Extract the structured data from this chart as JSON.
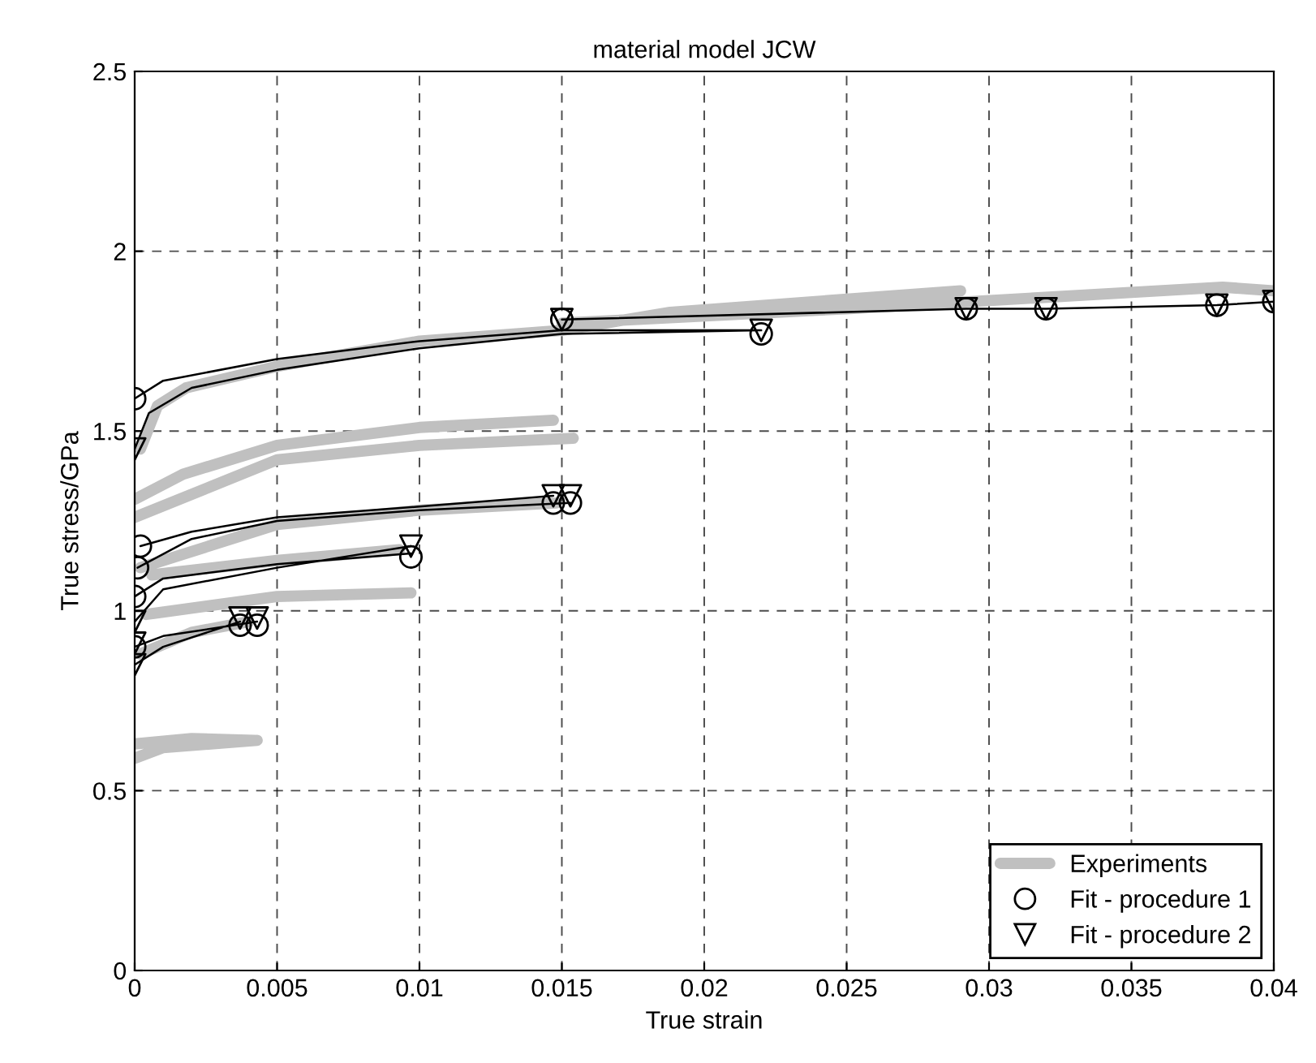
{
  "chart_data": {
    "type": "line",
    "title": "material model JCW",
    "xlabel": "True strain",
    "ylabel": "True stress/GPa",
    "xlim": [
      0,
      0.04
    ],
    "xticks": [
      0,
      0.005,
      0.01,
      0.015,
      0.02,
      0.025,
      0.03,
      0.035,
      0.04
    ],
    "ylim": [
      0,
      2.5
    ],
    "yticks": [
      0,
      0.5,
      1,
      1.5,
      2,
      2.5
    ],
    "grid": true,
    "legend": "bottom right",
    "series": [
      {
        "name": "Experiments",
        "color": "#c0c0c0",
        "marker": "none",
        "x": [
          0.0002,
          0.0008,
          0.0018,
          0.005,
          0.01,
          0.015,
          0.0188,
          0.029,
          null,
          0.015,
          0.025,
          0.0382,
          0.04,
          null,
          0,
          0.0017,
          0.005,
          0.01,
          0.0147,
          null,
          0,
          0.005,
          0.01,
          0.0154,
          null,
          0.0002,
          0.005,
          0.01,
          0.0148,
          null,
          0.0006,
          0.005,
          0.0093,
          null,
          0.0004,
          0.005,
          0.0097,
          null,
          0.0002,
          0.002,
          0.004,
          null,
          0,
          0.001,
          0.0043,
          null,
          0,
          0.002,
          0.0042
        ],
        "values": [
          1.45,
          1.57,
          1.62,
          1.68,
          1.75,
          1.78,
          1.83,
          1.89,
          null,
          1.8,
          1.84,
          1.9,
          1.89,
          null,
          1.31,
          1.38,
          1.46,
          1.51,
          1.53,
          null,
          1.26,
          1.42,
          1.46,
          1.48,
          null,
          1.12,
          1.24,
          1.28,
          1.3,
          null,
          1.1,
          1.14,
          1.17,
          null,
          0.99,
          1.04,
          1.05,
          null,
          0.88,
          0.94,
          0.97,
          null,
          0.59,
          0.62,
          0.64,
          null,
          0.63,
          0.645,
          0.64
        ]
      },
      {
        "color": "#000000",
        "marker": "none",
        "x": [
          0,
          0.001,
          0.005,
          0.01,
          0.015,
          0.022,
          null,
          0,
          0.0005,
          0.002,
          0.005,
          0.01,
          0.015,
          0.022,
          null,
          0.015,
          0.0292,
          0.032,
          0.038,
          0.04,
          null,
          0.0001,
          0.002,
          0.005,
          0.01,
          0.0153,
          null,
          0.0002,
          0.002,
          0.005,
          0.01,
          0.0147,
          null,
          0,
          0.001,
          0.005,
          0.0097,
          null,
          0,
          0.001,
          0.005,
          0.0097,
          null,
          0,
          0.001,
          0.0043,
          null,
          0,
          0.001,
          0.0037
        ],
        "values": [
          1.59,
          1.64,
          1.7,
          1.75,
          1.78,
          1.78,
          null,
          1.45,
          1.55,
          1.62,
          1.67,
          1.73,
          1.77,
          1.78,
          null,
          1.81,
          1.84,
          1.84,
          1.85,
          1.86,
          null,
          1.12,
          1.2,
          1.25,
          1.28,
          1.3,
          null,
          1.18,
          1.22,
          1.26,
          1.29,
          1.32,
          null,
          1.04,
          1.09,
          1.13,
          1.16,
          null,
          0.97,
          1.06,
          1.12,
          1.18,
          null,
          0.9,
          0.93,
          0.97,
          null,
          0.85,
          0.9,
          0.97
        ]
      },
      {
        "type": "scatter",
        "name": "Fit - procedure 1",
        "color": "#000000",
        "marker": "circle",
        "x": [
          0,
          0.022,
          0.015,
          0.0292,
          0.032,
          0.038,
          0.04,
          0.0001,
          0.0002,
          0.0147,
          0.0153,
          0,
          0.0097,
          0,
          0.0037,
          0.0043
        ],
        "values": [
          1.59,
          1.77,
          1.81,
          1.84,
          1.84,
          1.85,
          1.86,
          1.12,
          1.18,
          1.3,
          1.3,
          1.04,
          1.15,
          0.9,
          0.96,
          0.96
        ]
      },
      {
        "type": "scatter",
        "name": "Fit - procedure 2",
        "color": "#000000",
        "marker": "triangle",
        "x": [
          0,
          0.022,
          0.015,
          0.0292,
          0.032,
          0.038,
          0.04,
          0,
          0.0147,
          0.0153,
          0,
          0.0097,
          0,
          0.0037,
          0.0043
        ],
        "values": [
          1.45,
          1.78,
          1.81,
          1.84,
          1.84,
          1.85,
          1.86,
          0.97,
          1.32,
          1.32,
          0.91,
          1.18,
          0.85,
          0.98,
          0.98
        ]
      }
    ]
  }
}
